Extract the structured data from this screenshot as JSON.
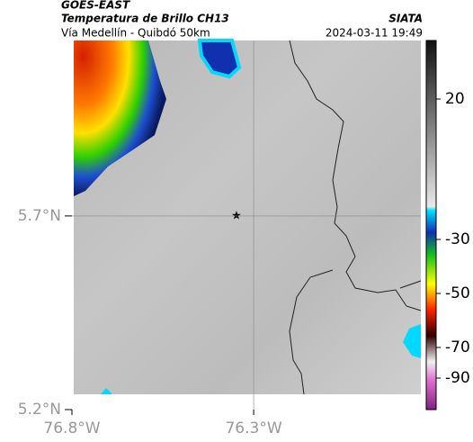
{
  "header": {
    "source": "GOES-EAST",
    "title": "Temperatura de Brillo CH13",
    "brand": "SIATA",
    "subtitle": "Vía Medellín - Quibdó 50km",
    "datetime": "2024-03-11 19:49"
  },
  "map": {
    "lon_range": [
      -76.8,
      -75.84
    ],
    "lat_range": [
      5.2,
      6.153
    ],
    "lat_ticks": [
      {
        "value": 5.7,
        "label": "5.7°N"
      },
      {
        "value": 5.2,
        "label": "5.2°N"
      }
    ],
    "lon_ticks": [
      {
        "value": -76.8,
        "label": "76.8°W"
      },
      {
        "value": -76.3,
        "label": "76.3°W"
      }
    ],
    "grid": true
  },
  "colorbar": {
    "ticks": [
      20,
      -30,
      -50,
      -70,
      -90
    ]
  }
}
